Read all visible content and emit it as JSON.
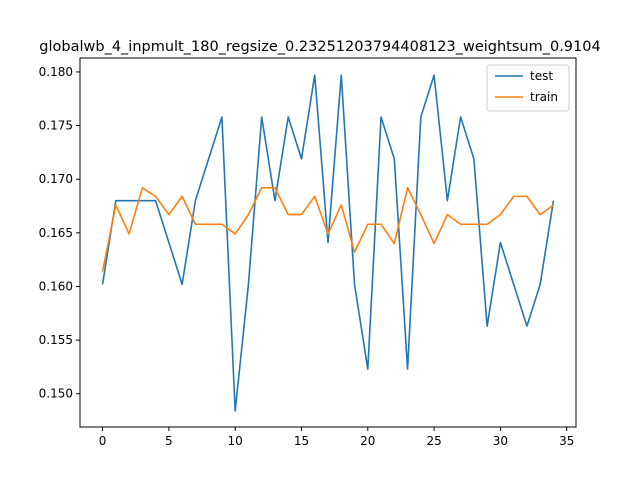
{
  "chart_data": {
    "type": "line",
    "title": "globalwb_4_inpmult_180_regsize_0.23251203794408123_weightsum_0.9104",
    "xlabel": "",
    "ylabel": "",
    "xlim": [
      -1.7,
      35.7
    ],
    "ylim": [
      0.1469,
      0.1813
    ],
    "xticks": [
      0,
      5,
      10,
      15,
      20,
      25,
      30,
      35
    ],
    "yticks": [
      0.15,
      0.155,
      0.16,
      0.165,
      0.17,
      0.175,
      0.18
    ],
    "xtick_labels": [
      "0",
      "5",
      "10",
      "15",
      "20",
      "25",
      "30",
      "35"
    ],
    "ytick_labels": [
      "0.150",
      "0.155",
      "0.160",
      "0.165",
      "0.170",
      "0.175",
      "0.180"
    ],
    "grid": false,
    "legend_position": "top-right",
    "x": [
      0,
      1,
      2,
      3,
      4,
      5,
      6,
      7,
      8,
      9,
      10,
      11,
      12,
      13,
      14,
      15,
      16,
      17,
      18,
      19,
      20,
      21,
      22,
      23,
      24,
      25,
      26,
      27,
      28,
      29,
      30,
      31,
      32,
      33,
      34
    ],
    "series": [
      {
        "name": "test",
        "color": "#1f77b4",
        "values": [
          0.1602,
          0.168,
          0.168,
          0.168,
          0.168,
          0.1641,
          0.1602,
          0.168,
          0.1719,
          0.1758,
          0.1484,
          0.1602,
          0.1758,
          0.168,
          0.1758,
          0.1719,
          0.1797,
          0.1641,
          0.1797,
          0.1602,
          0.1523,
          0.1758,
          0.1719,
          0.1523,
          0.1758,
          0.1797,
          0.168,
          0.1758,
          0.1719,
          0.1563,
          0.1641,
          0.1602,
          0.1563,
          0.1602,
          0.168
        ]
      },
      {
        "name": "train",
        "color": "#ff7f0e",
        "values": [
          0.1614,
          0.1676,
          0.1649,
          0.1692,
          0.1684,
          0.1667,
          0.1684,
          0.1658,
          0.1658,
          0.1658,
          0.1649,
          0.1667,
          0.1692,
          0.1692,
          0.1667,
          0.1667,
          0.1684,
          0.1649,
          0.1676,
          0.1632,
          0.1658,
          0.1658,
          0.164,
          0.1692,
          0.1667,
          0.164,
          0.1667,
          0.1658,
          0.1658,
          0.1658,
          0.1667,
          0.1684,
          0.1684,
          0.1667,
          0.1676
        ]
      }
    ]
  }
}
